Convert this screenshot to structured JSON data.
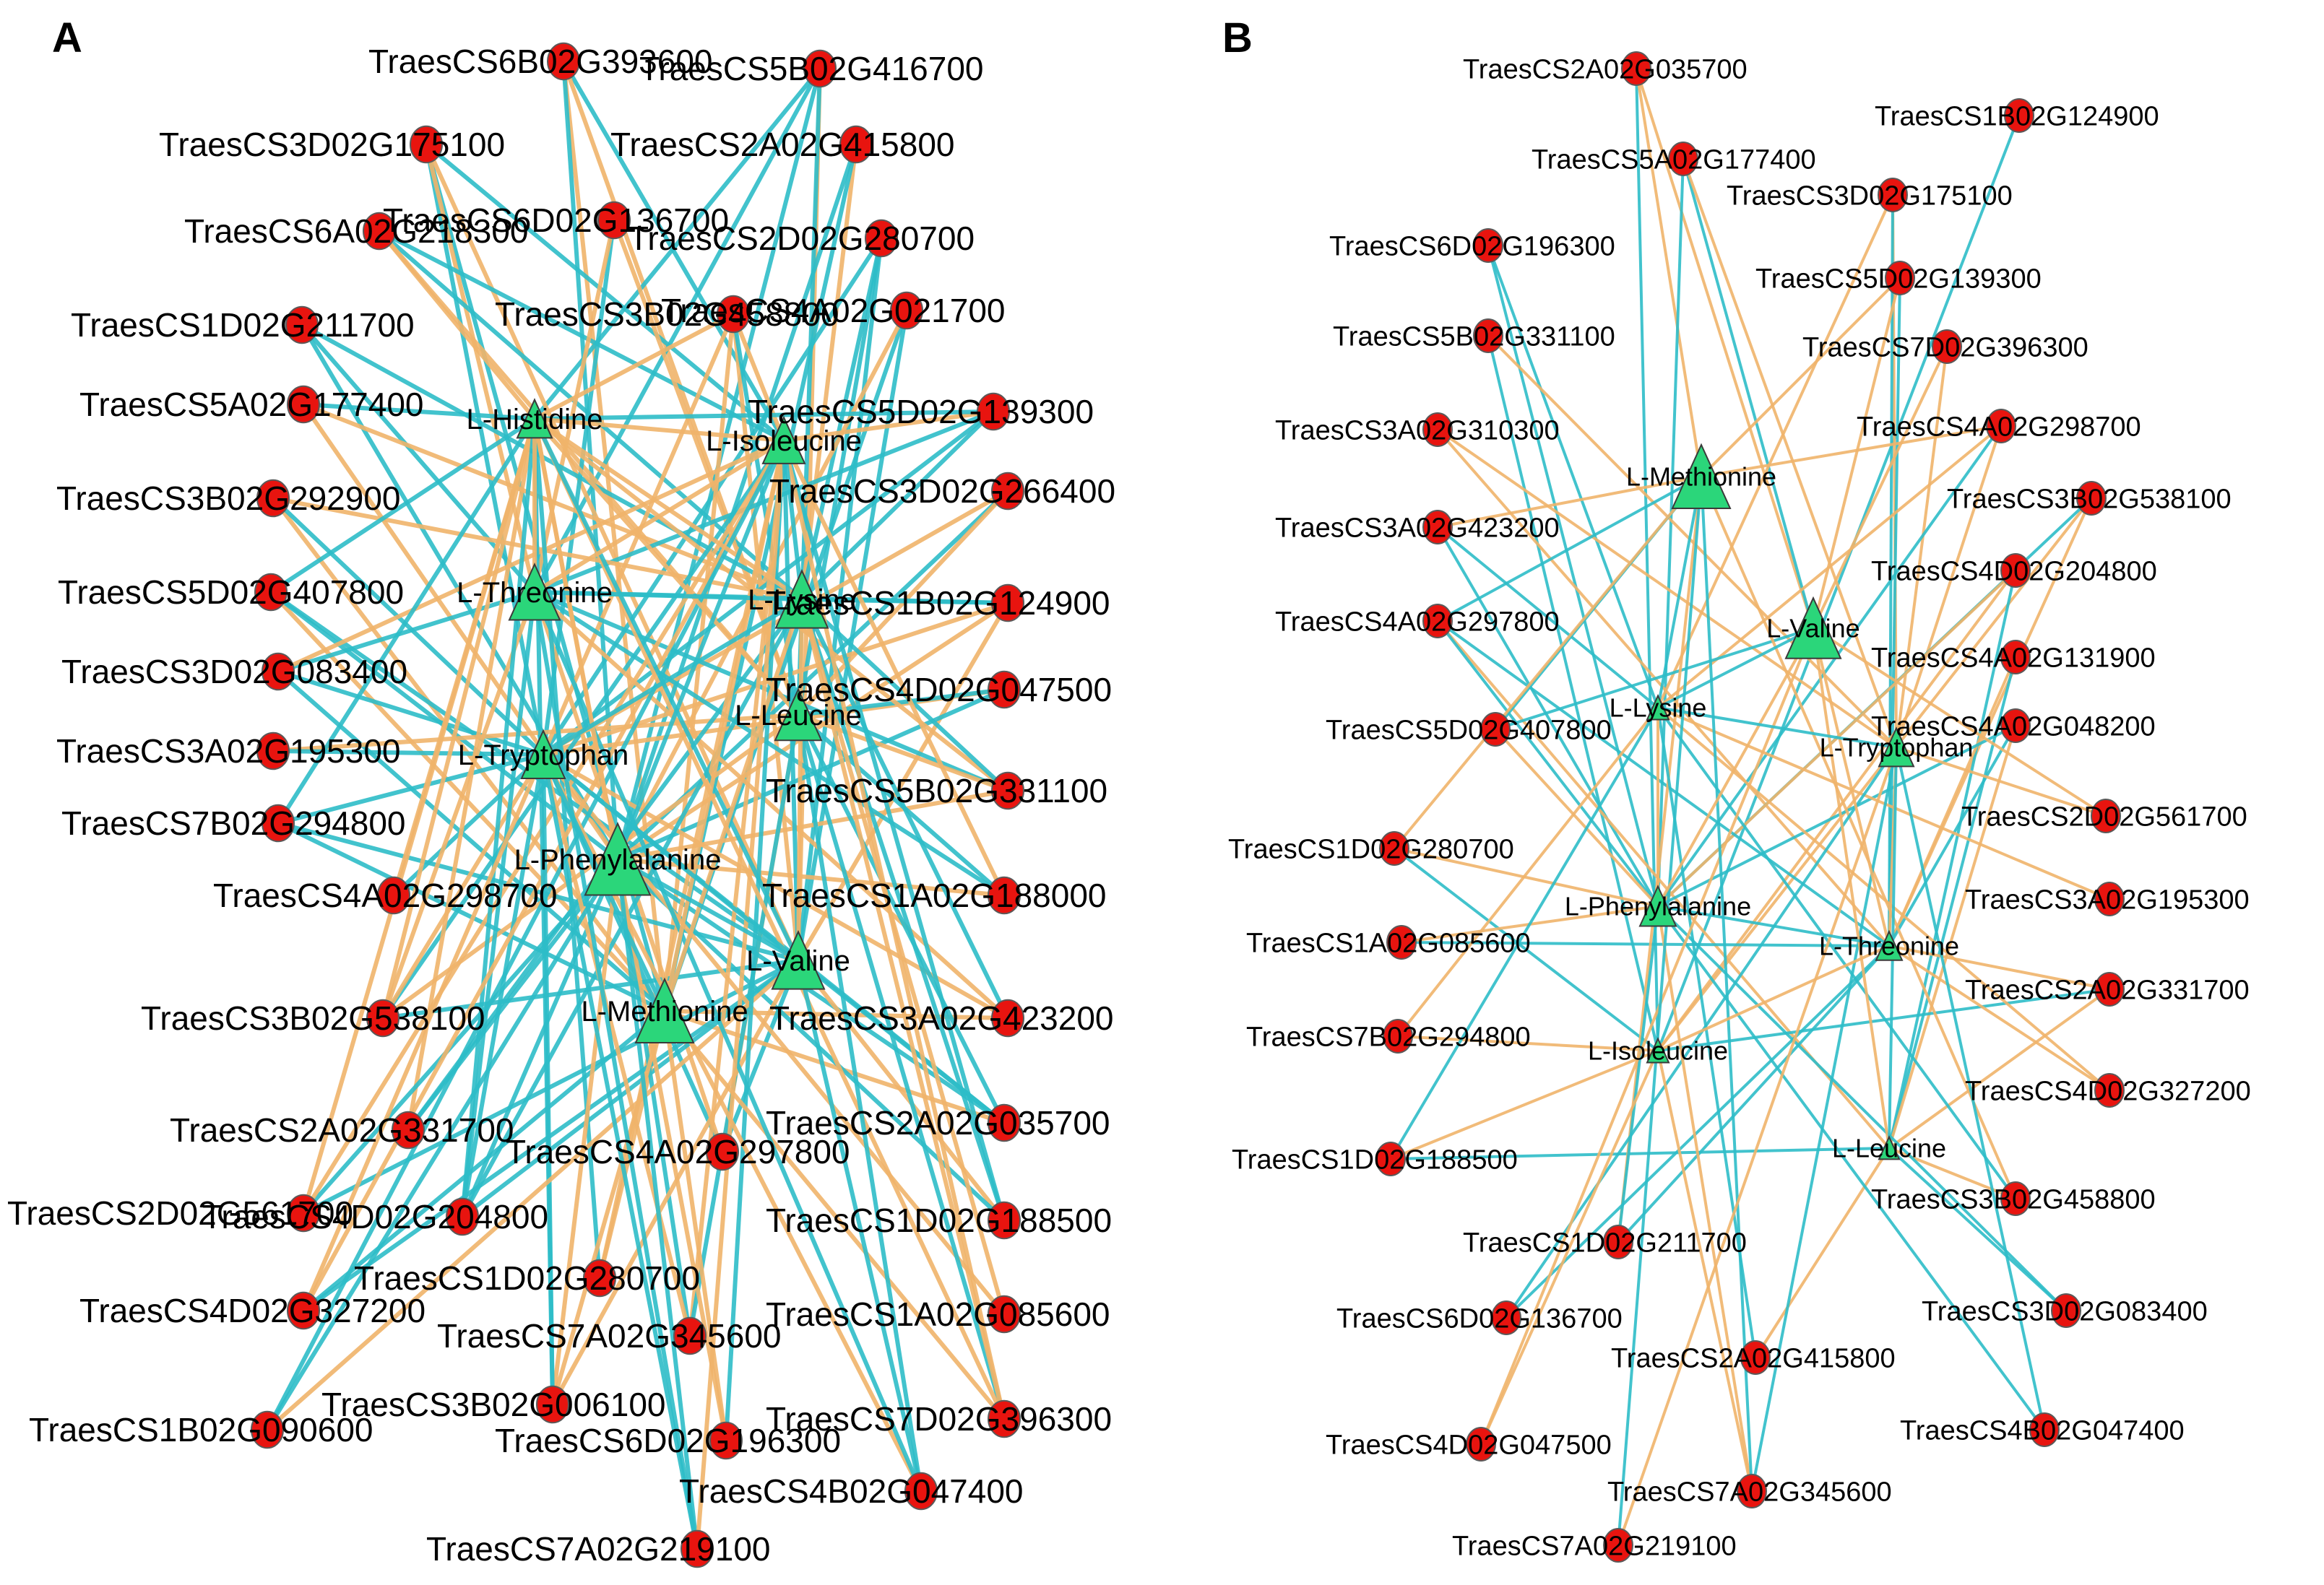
{
  "colors": {
    "gene_node": "#e8140f",
    "metabolite_node": "#2bd67a",
    "positive_edge": "#f0b46a",
    "negative_edge": "#2dbdc8",
    "label": "#000000"
  },
  "panels": [
    {
      "label": "A",
      "metabolites": [
        "L-Histidine",
        "L-Isoleucine",
        "L-Lysine",
        "L-Threonine",
        "L-Leucine",
        "L-Tryptophan",
        "L-Phenylalanine",
        "L-Valine",
        "L-Methionine"
      ],
      "genes": [
        "TraesCS6B02G393600",
        "TraesCS5B02G416700",
        "TraesCS3D02G175100",
        "TraesCS2A02G415800",
        "TraesCS6A02G218300",
        "TraesCS6D02G136700",
        "TraesCS2D02G280700",
        "TraesCS1D02G211700",
        "TraesCS3B02G458800",
        "TraesCS4A02G021700",
        "TraesCS5A02G177400",
        "TraesCS5D02G139300",
        "TraesCS3B02G292900",
        "TraesCS3D02G266400",
        "TraesCS5D02G407800",
        "TraesCS1B02G124900",
        "TraesCS3D02G083400",
        "TraesCS4D02G047500",
        "TraesCS3A02G195300",
        "TraesCS5B02G331100",
        "TraesCS7B02G294800",
        "TraesCS4A02G298700",
        "TraesCS1A02G188000",
        "TraesCS3B02G538100",
        "TraesCS3A02G423200",
        "TraesCS2A02G331700",
        "TraesCS4A02G297800",
        "TraesCS2A02G035700",
        "TraesCS2D02G561700",
        "TraesCS4D02G204800",
        "TraesCS1D02G188500",
        "TraesCS1D02G280700",
        "TraesCS4D02G327200",
        "TraesCS7A02G345600",
        "TraesCS1A02G085600",
        "TraesCS3B02G006100",
        "TraesCS1B02G090600",
        "TraesCS6D02G196300",
        "TraesCS7D02G396300",
        "TraesCS4B02G047400",
        "TraesCS7A02G219100"
      ]
    },
    {
      "label": "B",
      "metabolites": [
        "L-Methionine",
        "L-Valine",
        "L-Lysine",
        "L-Tryptophan",
        "L-Phenylalanine",
        "L-Threonine",
        "L-Isoleucine",
        "L-Leucine"
      ],
      "genes": [
        "TraesCS2A02G035700",
        "TraesCS1B02G124900",
        "TraesCS5A02G177400",
        "TraesCS3D02G175100",
        "TraesCS6D02G196300",
        "TraesCS5D02G139300",
        "TraesCS5B02G331100",
        "TraesCS7D02G396300",
        "TraesCS3A02G310300",
        "TraesCS4A02G298700",
        "TraesCS3B02G538100",
        "TraesCS3A02G423200",
        "TraesCS4D02G204800",
        "TraesCS4A02G297800",
        "TraesCS4A02G131900",
        "TraesCS5D02G407800",
        "TraesCS4A02G048200",
        "TraesCS2D02G561700",
        "TraesCS1D02G280700",
        "TraesCS3A02G195300",
        "TraesCS1A02G085600",
        "TraesCS2A02G331700",
        "TraesCS7B02G294800",
        "TraesCS4D02G327200",
        "TraesCS1D02G188500",
        "TraesCS3B02G458800",
        "TraesCS1D02G211700",
        "TraesCS6D02G136700",
        "TraesCS3D02G083400",
        "TraesCS2A02G415800",
        "TraesCS4B02G047400",
        "TraesCS4D02G047500",
        "TraesCS7A02G345600",
        "TraesCS7A02G219100"
      ]
    }
  ]
}
